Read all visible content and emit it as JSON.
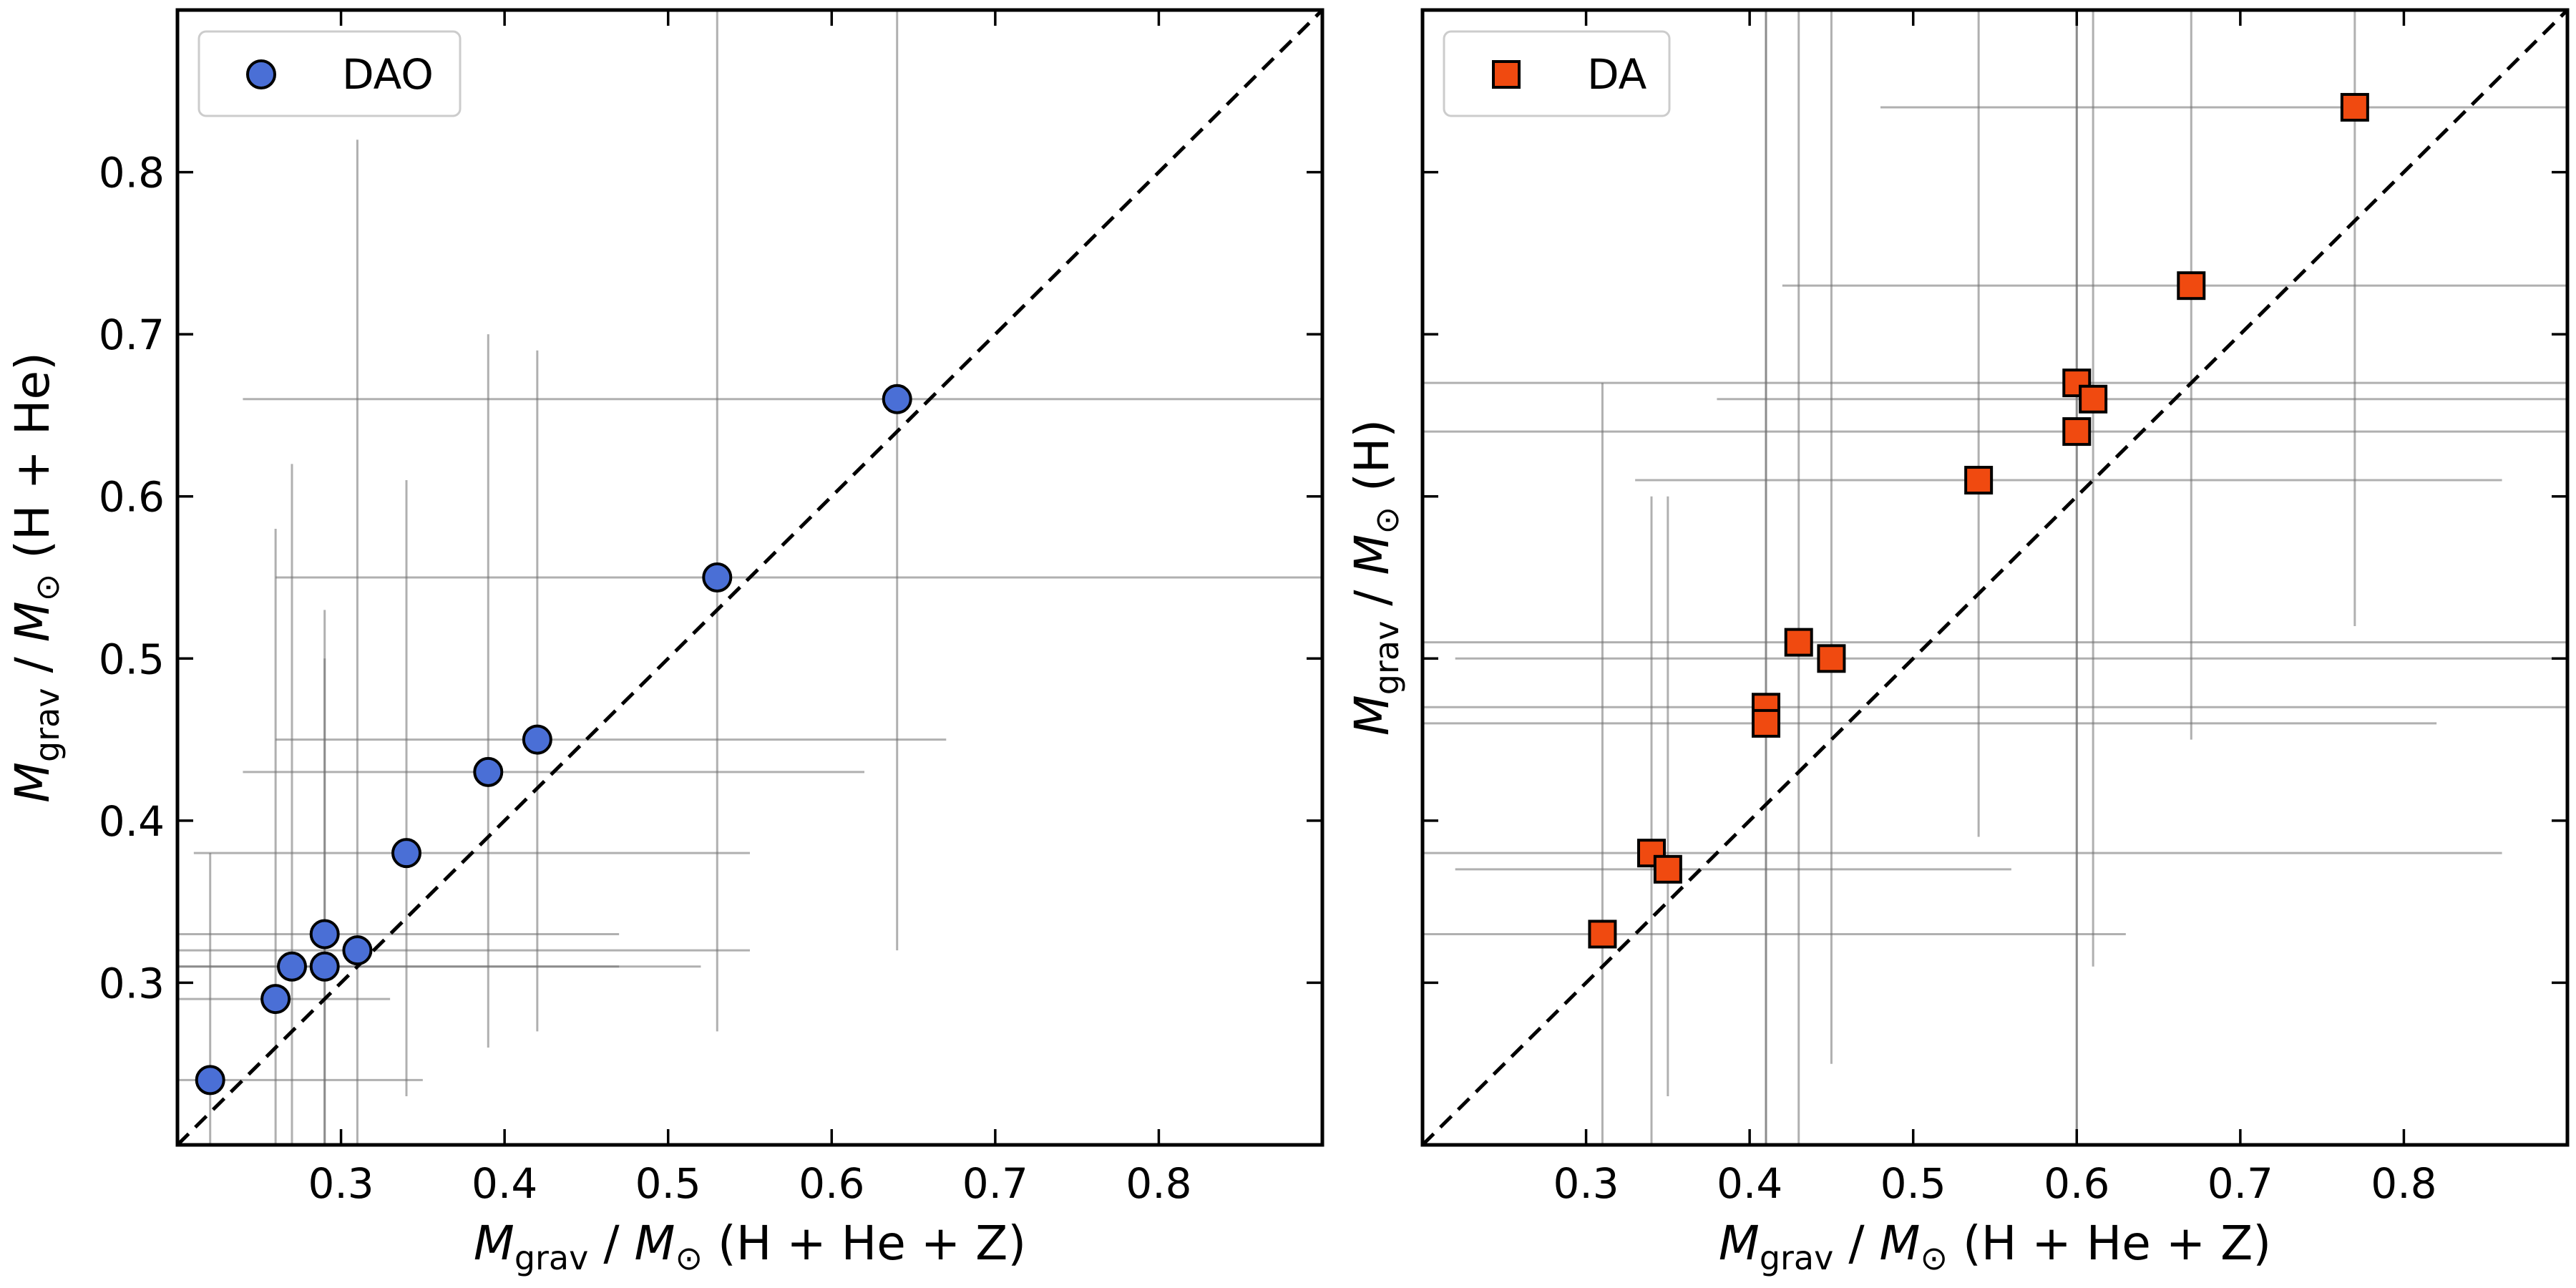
{
  "chart_data": [
    {
      "type": "scatter",
      "marker": "circle",
      "color": "#4a6fd6",
      "legend": "DAO",
      "legend_position": "top-left",
      "xlabel": {
        "main": "M",
        "sub": "grav",
        "rest": " / M",
        "sun": "⊙",
        "tail": " (H + He + Z)"
      },
      "ylabel": {
        "main": "M",
        "sub": "grav",
        "rest": " / M",
        "sun": "⊙",
        "tail": " (H + He)"
      },
      "xlim": [
        0.2,
        0.9
      ],
      "ylim": [
        0.2,
        0.9
      ],
      "xticks": [
        0.3,
        0.4,
        0.5,
        0.6,
        0.7,
        0.8
      ],
      "yticks": [
        0.3,
        0.4,
        0.5,
        0.6,
        0.7,
        0.8
      ],
      "show_xtick_labels": true,
      "show_ytick_labels": true,
      "diagonal": true,
      "points": [
        {
          "x": 0.22,
          "y": 0.24,
          "xerr": [
            0.2,
            0.35
          ],
          "yerr": [
            0.2,
            0.38
          ]
        },
        {
          "x": 0.26,
          "y": 0.29,
          "xerr": [
            0.2,
            0.33
          ],
          "yerr": [
            0.2,
            0.58
          ]
        },
        {
          "x": 0.27,
          "y": 0.31,
          "xerr": [
            0.2,
            0.52
          ],
          "yerr": [
            0.2,
            0.62
          ]
        },
        {
          "x": 0.29,
          "y": 0.33,
          "xerr": [
            0.2,
            0.47
          ],
          "yerr": [
            0.2,
            0.53
          ]
        },
        {
          "x": 0.29,
          "y": 0.31,
          "xerr": [
            0.2,
            0.47
          ],
          "yerr": [
            0.2,
            0.5
          ]
        },
        {
          "x": 0.31,
          "y": 0.32,
          "xerr": [
            0.2,
            0.55
          ],
          "yerr": [
            0.2,
            0.82
          ]
        },
        {
          "x": 0.34,
          "y": 0.38,
          "xerr": [
            0.21,
            0.55
          ],
          "yerr": [
            0.23,
            0.61
          ]
        },
        {
          "x": 0.39,
          "y": 0.43,
          "xerr": [
            0.24,
            0.62
          ],
          "yerr": [
            0.26,
            0.7
          ]
        },
        {
          "x": 0.42,
          "y": 0.45,
          "xerr": [
            0.26,
            0.67
          ],
          "yerr": [
            0.27,
            0.69
          ]
        },
        {
          "x": 0.53,
          "y": 0.55,
          "xerr": [
            0.26,
            0.9
          ],
          "yerr": [
            0.27,
            0.9
          ]
        },
        {
          "x": 0.64,
          "y": 0.66,
          "xerr": [
            0.24,
            0.9
          ],
          "yerr": [
            0.32,
            0.9
          ]
        }
      ]
    },
    {
      "type": "scatter",
      "marker": "square",
      "color": "#f04a10",
      "legend": "DA",
      "legend_position": "top-left",
      "xlabel": {
        "main": "M",
        "sub": "grav",
        "rest": " / M",
        "sun": "⊙",
        "tail": " (H + He + Z)"
      },
      "ylabel": {
        "main": "M",
        "sub": "grav",
        "rest": " / M",
        "sun": "⊙",
        "tail": " (H)"
      },
      "xlim": [
        0.2,
        0.9
      ],
      "ylim": [
        0.2,
        0.9
      ],
      "xticks": [
        0.3,
        0.4,
        0.5,
        0.6,
        0.7,
        0.8
      ],
      "yticks": [
        0.3,
        0.4,
        0.5,
        0.6,
        0.7,
        0.8
      ],
      "show_xtick_labels": true,
      "show_ytick_labels": false,
      "diagonal": true,
      "points": [
        {
          "x": 0.31,
          "y": 0.33,
          "xerr": [
            0.2,
            0.63
          ],
          "yerr": [
            0.2,
            0.67
          ]
        },
        {
          "x": 0.34,
          "y": 0.38,
          "xerr": [
            0.2,
            0.86
          ],
          "yerr": [
            0.2,
            0.6
          ]
        },
        {
          "x": 0.35,
          "y": 0.37,
          "xerr": [
            0.22,
            0.56
          ],
          "yerr": [
            0.23,
            0.6
          ]
        },
        {
          "x": 0.41,
          "y": 0.47,
          "xerr": [
            0.2,
            0.9
          ],
          "yerr": [
            0.2,
            0.9
          ]
        },
        {
          "x": 0.41,
          "y": 0.46,
          "xerr": [
            0.2,
            0.82
          ],
          "yerr": [
            0.2,
            0.9
          ]
        },
        {
          "x": 0.43,
          "y": 0.51,
          "xerr": [
            0.2,
            0.9
          ],
          "yerr": [
            0.2,
            0.9
          ]
        },
        {
          "x": 0.45,
          "y": 0.5,
          "xerr": [
            0.22,
            0.9
          ],
          "yerr": [
            0.25,
            0.9
          ]
        },
        {
          "x": 0.54,
          "y": 0.61,
          "xerr": [
            0.33,
            0.86
          ],
          "yerr": [
            0.39,
            0.9
          ]
        },
        {
          "x": 0.6,
          "y": 0.67,
          "xerr": [
            0.2,
            0.9
          ],
          "yerr": [
            0.2,
            0.9
          ]
        },
        {
          "x": 0.61,
          "y": 0.66,
          "xerr": [
            0.38,
            0.9
          ],
          "yerr": [
            0.31,
            0.9
          ]
        },
        {
          "x": 0.6,
          "y": 0.64,
          "xerr": [
            0.2,
            0.9
          ],
          "yerr": [
            0.2,
            0.9
          ]
        },
        {
          "x": 0.67,
          "y": 0.73,
          "xerr": [
            0.42,
            0.9
          ],
          "yerr": [
            0.45,
            0.9
          ]
        },
        {
          "x": 0.77,
          "y": 0.84,
          "xerr": [
            0.48,
            0.9
          ],
          "yerr": [
            0.52,
            0.9
          ]
        }
      ]
    }
  ]
}
